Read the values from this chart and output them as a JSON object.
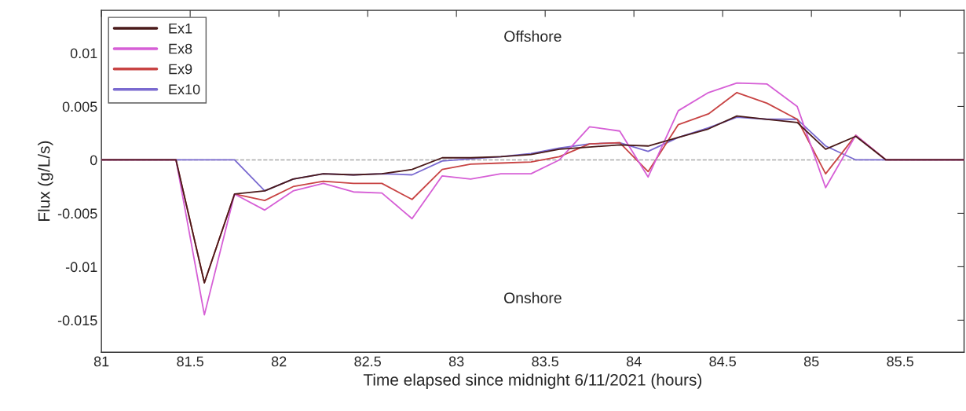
{
  "chart_data": {
    "type": "line",
    "xlabel": "Time elapsed since midnight 6/11/2021 (hours)",
    "ylabel": "Flux (g/L/s)",
    "x": [
      81,
      81.42,
      81.58,
      81.75,
      81.92,
      82.08,
      82.25,
      82.42,
      82.58,
      82.75,
      82.92,
      83.08,
      83.25,
      83.42,
      83.58,
      83.75,
      83.92,
      84.08,
      84.25,
      84.42,
      84.58,
      84.75,
      84.92,
      85.08,
      85.25,
      85.42,
      85.86
    ],
    "series": [
      {
        "name": "Ex1",
        "color": "#4a1a1a",
        "values": [
          0,
          0,
          -0.0115,
          -0.0032,
          -0.0029,
          -0.0018,
          -0.0013,
          -0.0014,
          -0.0013,
          -0.0009,
          0.0002,
          0.0002,
          0.0003,
          0.0005,
          0.001,
          0.0012,
          0.0014,
          0.0013,
          0.0021,
          0.0029,
          0.0041,
          0.0038,
          0.0035,
          0.001,
          0.0022,
          0,
          0
        ]
      },
      {
        "name": "Ex8",
        "color": "#d65fd6",
        "values": [
          0,
          0,
          -0.0145,
          -0.0032,
          -0.0047,
          -0.0029,
          -0.0022,
          -0.003,
          -0.0031,
          -0.0055,
          -0.0015,
          -0.0018,
          -0.0013,
          -0.0013,
          0,
          0.0031,
          0.0027,
          -0.0016,
          0.0046,
          0.0063,
          0.0072,
          0.0071,
          0.005,
          -0.0026,
          0.0023,
          0,
          0
        ]
      },
      {
        "name": "Ex9",
        "color": "#c84444",
        "values": [
          0,
          0,
          -0.0115,
          -0.0032,
          -0.0038,
          -0.0025,
          -0.002,
          -0.0022,
          -0.0022,
          -0.0037,
          -0.0009,
          -0.0004,
          -0.0003,
          -0.0002,
          0.0003,
          0.0015,
          0.0016,
          -0.0011,
          0.0033,
          0.0043,
          0.0063,
          0.0053,
          0.0038,
          -0.0013,
          0.0023,
          0,
          0
        ]
      },
      {
        "name": "Ex10",
        "color": "#7a6ad0",
        "values": [
          0,
          0,
          0,
          0,
          -0.0029,
          -0.0018,
          -0.0013,
          -0.0014,
          -0.0013,
          -0.0014,
          -0.0001,
          0.0001,
          0.0003,
          0.0006,
          0.0011,
          0.0015,
          0.0016,
          0.0008,
          0.0021,
          0.003,
          0.004,
          0.0038,
          0.0038,
          0.0013,
          0,
          0,
          0
        ]
      }
    ],
    "xlim": [
      81,
      85.86
    ],
    "xticks": [
      81,
      81.5,
      82,
      82.5,
      83,
      83.5,
      84,
      84.5,
      85,
      85.5
    ],
    "ylim": [
      -0.018,
      0.014
    ],
    "yticks": [
      -0.015,
      -0.01,
      -0.005,
      0,
      0.005,
      0.01
    ],
    "ref_lines": [
      {
        "axis": "y",
        "value": 0,
        "label": null,
        "color": "#aaaaaa",
        "line_style": "dashed"
      }
    ],
    "annotations": [
      "Offshore",
      "Onshore"
    ],
    "legend": "top left",
    "grid": false,
    "marker": "none",
    "line_style": "solid"
  }
}
